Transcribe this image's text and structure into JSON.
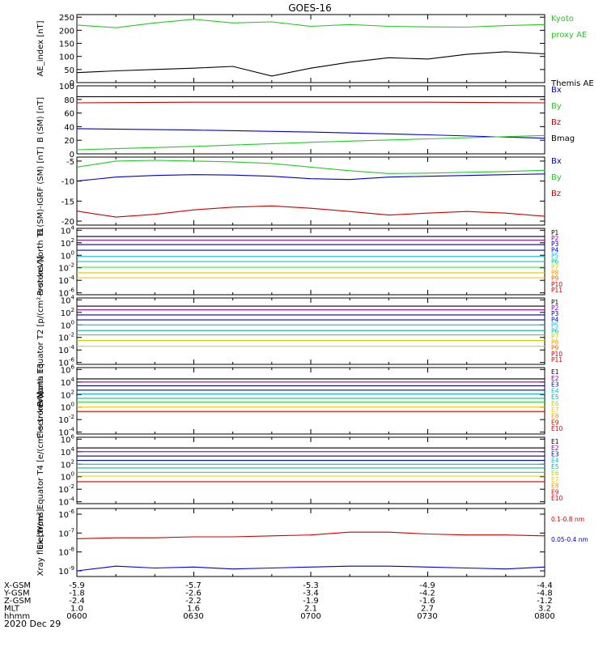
{
  "title": "GOES-16",
  "date_label": "2020 Dec 29",
  "colors": {
    "black": "#000000",
    "green": "#22cc22",
    "blue": "#0000cc",
    "red": "#cc0000",
    "purple": "#8800aa",
    "cyan": "#00bbdd",
    "teal": "#00bb99",
    "yellow": "#dddd00",
    "orange": "#ee9900",
    "navy": "#000088",
    "lime": "#33dd33",
    "gold": "#cccc00"
  },
  "axis_table": {
    "rows": [
      {
        "label": "X-GSM",
        "values": [
          "-5.9",
          "-5.7",
          "-5.3",
          "-4.9",
          "-4.4"
        ]
      },
      {
        "label": "Y-GSM",
        "values": [
          "-1.8",
          "-2.6",
          "-3.4",
          "-4.2",
          "-4.8"
        ]
      },
      {
        "label": "Z-GSM",
        "values": [
          "-2.4",
          "-2.2",
          "-1.9",
          "-1.6",
          "-1.2"
        ]
      },
      {
        "label": "MLT",
        "values": [
          "1.0",
          "1.6",
          "2.1",
          "2.7",
          "3.2"
        ]
      },
      {
        "label": "hhmm",
        "values": [
          "0600",
          "0630",
          "0700",
          "0730",
          "0800"
        ]
      }
    ]
  },
  "chart_data": [
    {
      "id": "ae",
      "type": "line",
      "ylabel": "AE_index [nT]",
      "ylim": [
        0,
        260
      ],
      "log": false,
      "ticks": [
        "0",
        "50",
        "100",
        "150",
        "200",
        "250"
      ],
      "tick_values": [
        0,
        50,
        100,
        150,
        200,
        250
      ],
      "x": [
        0,
        10,
        20,
        30,
        40,
        50,
        60,
        70,
        80,
        90,
        100,
        110,
        120
      ],
      "series": [
        {
          "name": "Kyoto proxy AE",
          "color": "#22cc22",
          "values": [
            220,
            210,
            228,
            242,
            228,
            232,
            215,
            222,
            215,
            213,
            212,
            218,
            222
          ]
        },
        {
          "name": "Themis AE",
          "color": "#000000",
          "values": [
            38,
            45,
            50,
            55,
            62,
            25,
            55,
            78,
            95,
            90,
            108,
            118,
            110
          ]
        }
      ],
      "labels": [
        {
          "text": "Kyoto",
          "color": "#22cc22",
          "row": 0
        },
        {
          "text": "proxy AE",
          "color": "#22cc22",
          "row": 1
        },
        {
          "text": "Themis AE",
          "color": "#000000",
          "row": 4
        }
      ]
    },
    {
      "id": "bsm",
      "type": "line",
      "ylabel": "B (SM) [nT]",
      "ylim": [
        0,
        100
      ],
      "log": false,
      "ticks": [
        "0",
        "20",
        "40",
        "60",
        "80",
        "100"
      ],
      "tick_values": [
        0,
        20,
        40,
        60,
        80,
        100
      ],
      "x": [
        0,
        30,
        60,
        90,
        120
      ],
      "series": [
        {
          "name": "Bmag",
          "color": "#000000",
          "values": [
            84,
            84,
            84,
            84,
            84
          ]
        },
        {
          "name": "Bz",
          "color": "#cc0000",
          "values": [
            75,
            76,
            76,
            76,
            75
          ]
        },
        {
          "name": "Bx",
          "color": "#0000cc",
          "values": [
            37,
            35,
            32,
            28,
            23
          ]
        },
        {
          "name": "By",
          "color": "#22cc22",
          "values": [
            6,
            11,
            17,
            22,
            27
          ]
        }
      ],
      "labels": [
        {
          "text": "Bx",
          "color": "#0000cc",
          "row": 0
        },
        {
          "text": "By",
          "color": "#22cc22",
          "row": 1
        },
        {
          "text": "Bz",
          "color": "#cc0000",
          "row": 2
        },
        {
          "text": "Bmag",
          "color": "#000000",
          "row": 3
        }
      ]
    },
    {
      "id": "bigrf",
      "type": "line",
      "ylabel": "B (SM)-IGRF (SM) [nT]",
      "ylim": [
        -21,
        -4
      ],
      "log": false,
      "ticks": [
        "-20",
        "-15",
        "-10",
        "-5"
      ],
      "tick_values": [
        -20,
        -15,
        -10,
        -5
      ],
      "x": [
        0,
        10,
        20,
        30,
        40,
        50,
        60,
        70,
        80,
        90,
        100,
        110,
        120
      ],
      "series": [
        {
          "name": "Bx",
          "color": "#0000cc",
          "values": [
            -10,
            -9,
            -8.6,
            -8.4,
            -8.5,
            -8.8,
            -9.4,
            -9.6,
            -9,
            -8.8,
            -8.6,
            -8.4,
            -8.2
          ]
        },
        {
          "name": "By",
          "color": "#22cc22",
          "values": [
            -6.5,
            -5,
            -4.8,
            -5,
            -5.2,
            -5.6,
            -6.5,
            -7.4,
            -8.1,
            -8,
            -7.8,
            -7.6,
            -7.3
          ]
        },
        {
          "name": "Bz",
          "color": "#cc0000",
          "values": [
            -17.5,
            -19,
            -18.3,
            -17.2,
            -16.5,
            -16.2,
            -16.8,
            -17.6,
            -18.5,
            -18,
            -17.6,
            -18,
            -18.8
          ]
        }
      ],
      "labels": [
        {
          "text": "Bx",
          "color": "#0000cc",
          "row": 0
        },
        {
          "text": "By",
          "color": "#22cc22",
          "row": 1
        },
        {
          "text": "Bz",
          "color": "#cc0000",
          "row": 2
        }
      ]
    },
    {
      "id": "p1",
      "type": "line",
      "ylabel": "Protons North T1",
      "ylim": [
        -6.3,
        4.3
      ],
      "log": true,
      "ticks": [
        "10^-6",
        "10^-4",
        "10^-2",
        "10^0",
        "10^2",
        "10^4"
      ],
      "tick_values": [
        -6,
        -4,
        -2,
        0,
        2,
        4
      ],
      "x": [
        0,
        120
      ],
      "series": [
        {
          "name": "P1",
          "color": "#000000",
          "values": [
            3.0,
            3.0
          ]
        },
        {
          "name": "P2",
          "color": "#8800aa",
          "values": [
            2.4,
            2.4
          ]
        },
        {
          "name": "P3",
          "color": "#000088",
          "values": [
            1.7,
            1.7
          ]
        },
        {
          "name": "P4",
          "color": "#0000cc",
          "values": [
            0.8,
            0.8
          ]
        },
        {
          "name": "P5",
          "color": "#00bbdd",
          "values": [
            -0.2,
            -0.2
          ]
        },
        {
          "name": "P6",
          "color": "#00bb99",
          "values": [
            -1.0,
            -1.0
          ]
        },
        {
          "name": "P7",
          "color": "#33dd33",
          "values": [
            -1.9,
            -1.9
          ]
        },
        {
          "name": "P8",
          "color": "#cccc00",
          "values": [
            -2.8,
            -2.8
          ]
        },
        {
          "name": "P9",
          "color": "#eecc00",
          "values": [
            -3.6,
            -3.6
          ]
        }
      ],
      "labels": [
        {
          "text": "P1",
          "color": "#000000",
          "row": 0
        },
        {
          "text": "P2",
          "color": "#8800aa",
          "row": 1
        },
        {
          "text": "P3",
          "color": "#000088",
          "row": 2
        },
        {
          "text": "P4",
          "color": "#0000cc",
          "row": 3
        },
        {
          "text": "P5",
          "color": "#00bbdd",
          "row": 4
        },
        {
          "text": "P6",
          "color": "#00bb99",
          "row": 5
        },
        {
          "text": "P7",
          "color": "#cccc00",
          "row": 6
        },
        {
          "text": "P8",
          "color": "#ee9900",
          "row": 7
        },
        {
          "text": "P9",
          "color": "#dd6600",
          "row": 8
        },
        {
          "text": "P10",
          "color": "#cc0000",
          "row": 9
        },
        {
          "text": "P11",
          "color": "#cc0000",
          "row": 10
        }
      ]
    },
    {
      "id": "p2",
      "type": "line",
      "ylabel": "Protons Equator T2 [p/(cm²-s-sr-keV)]",
      "ylim": [
        -6.3,
        4.3
      ],
      "log": true,
      "ticks": [
        "10^-6",
        "10^-4",
        "10^-2",
        "10^0",
        "10^2",
        "10^4"
      ],
      "tick_values": [
        -6,
        -4,
        -2,
        0,
        2,
        4
      ],
      "x": [
        0,
        120
      ],
      "series": [
        {
          "name": "P1",
          "color": "#000000",
          "values": [
            3.0,
            3.0
          ]
        },
        {
          "name": "P2",
          "color": "#8800aa",
          "values": [
            2.4,
            2.4
          ]
        },
        {
          "name": "P3",
          "color": "#000088",
          "values": [
            1.6,
            1.6
          ]
        },
        {
          "name": "P4",
          "color": "#0000cc",
          "values": [
            0.8,
            0.8
          ]
        },
        {
          "name": "P5",
          "color": "#00bbdd",
          "values": [
            0.0,
            0.0
          ]
        },
        {
          "name": "P6",
          "color": "#00bb99",
          "values": [
            -0.9,
            -0.9
          ]
        },
        {
          "name": "P7",
          "color": "#33dd33",
          "values": [
            -1.6,
            -1.6
          ]
        },
        {
          "name": "P8",
          "color": "#cccc00",
          "values": [
            -2.5,
            -2.5
          ]
        },
        {
          "name": "P9",
          "color": "#eecc00",
          "values": [
            -3.4,
            -3.4
          ]
        }
      ],
      "labels": [
        {
          "text": "P1",
          "color": "#000000",
          "row": 0
        },
        {
          "text": "P2",
          "color": "#8800aa",
          "row": 1
        },
        {
          "text": "P3",
          "color": "#000088",
          "row": 2
        },
        {
          "text": "P4",
          "color": "#0000cc",
          "row": 3
        },
        {
          "text": "P5",
          "color": "#00bbdd",
          "row": 4
        },
        {
          "text": "P6",
          "color": "#00bb99",
          "row": 5
        },
        {
          "text": "P7",
          "color": "#cccc00",
          "row": 6
        },
        {
          "text": "P8",
          "color": "#ee9900",
          "row": 7
        },
        {
          "text": "P9",
          "color": "#dd6600",
          "row": 8
        },
        {
          "text": "P10",
          "color": "#cc0000",
          "row": 9
        },
        {
          "text": "P11",
          "color": "#cc0000",
          "row": 10
        }
      ]
    },
    {
      "id": "e3",
      "type": "line",
      "ylabel": "Electrons North T3",
      "ylim": [
        -4.3,
        6.3
      ],
      "log": true,
      "ticks": [
        "10^-4",
        "10^-2",
        "10^0",
        "10^2",
        "10^4",
        "10^6"
      ],
      "tick_values": [
        -4,
        -2,
        0,
        2,
        4,
        6
      ],
      "x": [
        0,
        120
      ],
      "series": [
        {
          "name": "E1",
          "color": "#000000",
          "values": [
            4.5,
            4.5
          ]
        },
        {
          "name": "E2",
          "color": "#8800aa",
          "values": [
            4.0,
            4.0
          ]
        },
        {
          "name": "E3",
          "color": "#000088",
          "values": [
            3.4,
            3.4
          ]
        },
        {
          "name": "E4",
          "color": "#0000cc",
          "values": [
            2.7,
            2.7
          ]
        },
        {
          "name": "E5",
          "color": "#00bbdd",
          "values": [
            2.1,
            2.1
          ]
        },
        {
          "name": "E6",
          "color": "#00bb99",
          "values": [
            1.4,
            1.4
          ]
        },
        {
          "name": "E7",
          "color": "#33dd33",
          "values": [
            0.8,
            0.8
          ]
        },
        {
          "name": "E8",
          "color": "#eecc00",
          "values": [
            0.0,
            0.0
          ]
        },
        {
          "name": "E9",
          "color": "#cc0000",
          "values": [
            -0.7,
            -0.7
          ]
        }
      ],
      "labels": [
        {
          "text": "E1",
          "color": "#000000",
          "row": 0
        },
        {
          "text": "E2",
          "color": "#8800aa",
          "row": 1
        },
        {
          "text": "E3",
          "color": "#000088",
          "row": 2
        },
        {
          "text": "E4",
          "color": "#00bbdd",
          "row": 3
        },
        {
          "text": "E5",
          "color": "#00bb99",
          "row": 4
        },
        {
          "text": "E6",
          "color": "#cccc00",
          "row": 5
        },
        {
          "text": "E7",
          "color": "#eecc00",
          "row": 6
        },
        {
          "text": "E8",
          "color": "#ee9900",
          "row": 7
        },
        {
          "text": "E9",
          "color": "#cc0000",
          "row": 8
        },
        {
          "text": "E10",
          "color": "#cc0000",
          "row": 9
        }
      ]
    },
    {
      "id": "e4",
      "type": "line",
      "ylabel": "Electrons Equator T4 [e/(cm²-s-sr-keV)]",
      "ylim": [
        -4.3,
        6.3
      ],
      "log": true,
      "ticks": [
        "10^-4",
        "10^-2",
        "10^0",
        "10^2",
        "10^4",
        "10^6"
      ],
      "tick_values": [
        -4,
        -2,
        0,
        2,
        4,
        6
      ],
      "x": [
        0,
        120
      ],
      "series": [
        {
          "name": "E1",
          "color": "#000000",
          "values": [
            4.6,
            4.6
          ]
        },
        {
          "name": "E2",
          "color": "#8800aa",
          "values": [
            4.0,
            4.0
          ]
        },
        {
          "name": "E3",
          "color": "#000088",
          "values": [
            3.3,
            3.3
          ]
        },
        {
          "name": "E4",
          "color": "#0000cc",
          "values": [
            2.6,
            2.6
          ]
        },
        {
          "name": "E5",
          "color": "#00bbdd",
          "values": [
            2.0,
            2.0
          ]
        },
        {
          "name": "E6",
          "color": "#00bb99",
          "values": [
            1.4,
            1.4
          ]
        },
        {
          "name": "E7",
          "color": "#33dd33",
          "values": [
            0.7,
            0.7
          ]
        },
        {
          "name": "E8",
          "color": "#eecc00",
          "values": [
            0.1,
            0.1
          ]
        },
        {
          "name": "E9",
          "color": "#cc0000",
          "values": [
            -0.8,
            -0.8
          ]
        }
      ],
      "labels": [
        {
          "text": "E1",
          "color": "#000000",
          "row": 0
        },
        {
          "text": "E2",
          "color": "#8800aa",
          "row": 1
        },
        {
          "text": "E3",
          "color": "#000088",
          "row": 2
        },
        {
          "text": "E4",
          "color": "#00bbdd",
          "row": 3
        },
        {
          "text": "E5",
          "color": "#00bb99",
          "row": 4
        },
        {
          "text": "E6",
          "color": "#cccc00",
          "row": 5
        },
        {
          "text": "E7",
          "color": "#eecc00",
          "row": 6
        },
        {
          "text": "E8",
          "color": "#ee9900",
          "row": 7
        },
        {
          "text": "E9",
          "color": "#cc0000",
          "row": 8
        },
        {
          "text": "E10",
          "color": "#cc0000",
          "row": 9
        }
      ]
    },
    {
      "id": "xray",
      "type": "line",
      "ylabel": "Xray flux [W/m²]",
      "ylim": [
        -9.3,
        -5.7
      ],
      "log": true,
      "ticks": [
        "10^-9",
        "10^-8",
        "10^-7",
        "10^-6"
      ],
      "tick_values": [
        -9,
        -8,
        -7,
        -6
      ],
      "x": [
        0,
        10,
        20,
        30,
        40,
        50,
        60,
        70,
        80,
        90,
        100,
        110,
        120
      ],
      "series": [
        {
          "name": "0.1-0.8 nm",
          "color": "#cc0000",
          "values": [
            -7.3,
            -7.25,
            -7.25,
            -7.2,
            -7.2,
            -7.15,
            -7.1,
            -6.95,
            -6.95,
            -7.05,
            -7.1,
            -7.1,
            -7.15
          ]
        },
        {
          "name": "0.05-0.4 nm",
          "color": "#0000cc",
          "values": [
            -9.0,
            -8.75,
            -8.85,
            -8.8,
            -8.9,
            -8.85,
            -8.8,
            -8.75,
            -8.75,
            -8.8,
            -8.85,
            -8.9,
            -8.8
          ]
        }
      ],
      "labels": [
        {
          "text": "0.1-0.8 nm",
          "color": "#cc0000",
          "row": 1
        },
        {
          "text": "0.05-0.4 nm",
          "color": "#0000cc",
          "row": 4
        }
      ]
    }
  ]
}
